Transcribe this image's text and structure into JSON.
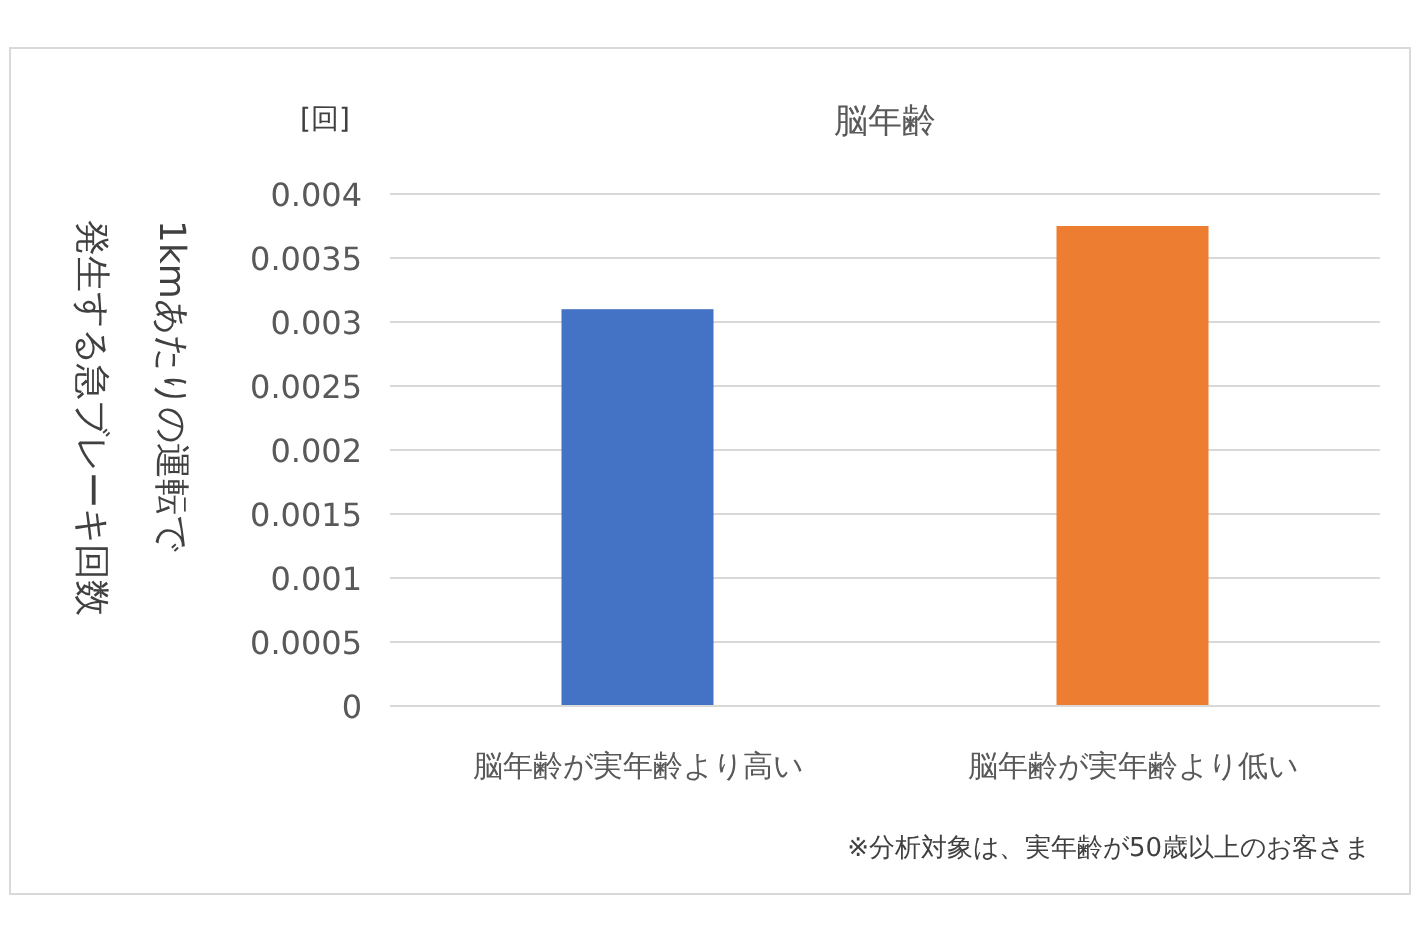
{
  "chart_data": {
    "type": "bar",
    "title": "脳年齢",
    "ylabel": "1kmあたりの運転で発生する急ブレーキ回数",
    "categories": [
      "脳年齢が実年齢より高い",
      "脳年齢が実年齢より低い"
    ],
    "values": [
      0.0031,
      0.00375
    ],
    "colors": [
      "#4472c4",
      "#ed7d31"
    ],
    "ylim": [
      0,
      0.004
    ],
    "yticks": [
      0,
      0.0005,
      0.001,
      0.0015,
      0.002,
      0.0025,
      0.003,
      0.0035,
      0.004
    ],
    "grid": "y",
    "annotations": [
      "[回]",
      "※分析対象は、実年齢が50歳以上のお客さま"
    ]
  }
}
